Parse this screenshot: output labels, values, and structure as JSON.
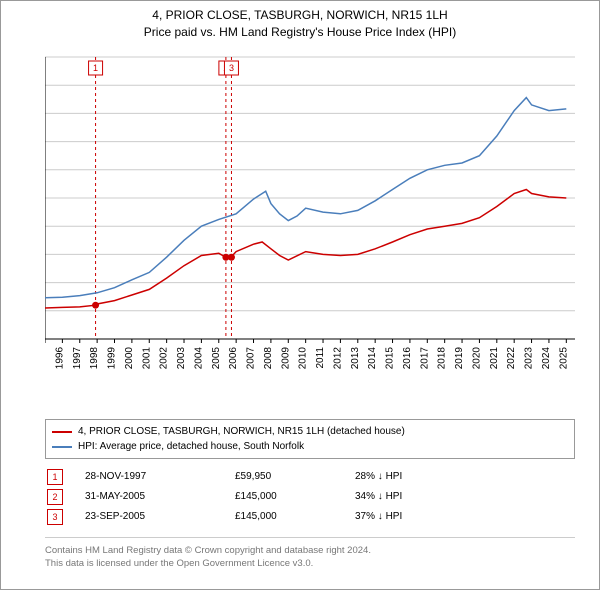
{
  "title_line1": "4, PRIOR CLOSE, TASBURGH, NORWICH, NR15 1LH",
  "title_line2": "Price paid vs. HM Land Registry's House Price Index (HPI)",
  "chart": {
    "type": "line",
    "background_color": "#ffffff",
    "grid_color": "#cccccc",
    "axis_color": "#000000",
    "label_fontsize": 10,
    "xlim": [
      1995,
      2025.5
    ],
    "ylim": [
      0,
      500000
    ],
    "ytick_step": 50000,
    "yticks": [
      "£0",
      "£50K",
      "£100K",
      "£150K",
      "£200K",
      "£250K",
      "£300K",
      "£350K",
      "£400K",
      "£450K",
      "£500K"
    ],
    "xticks": [
      "1995",
      "1996",
      "1997",
      "1998",
      "1999",
      "2000",
      "2001",
      "2002",
      "2003",
      "2004",
      "2005",
      "2006",
      "2007",
      "2008",
      "2009",
      "2010",
      "2011",
      "2012",
      "2013",
      "2014",
      "2015",
      "2016",
      "2017",
      "2018",
      "2019",
      "2020",
      "2021",
      "2022",
      "2023",
      "2024",
      "2025"
    ],
    "series": [
      {
        "name": "4, PRIOR CLOSE, TASBURGH, NORWICH, NR15 1LH (detached house)",
        "color": "#cc0000",
        "line_width": 1.5,
        "data": [
          [
            1995,
            55000
          ],
          [
            1996,
            56000
          ],
          [
            1997,
            57000
          ],
          [
            1997.9,
            59950
          ],
          [
            1998,
            62000
          ],
          [
            1999,
            68000
          ],
          [
            2000,
            78000
          ],
          [
            2001,
            88000
          ],
          [
            2002,
            108000
          ],
          [
            2003,
            130000
          ],
          [
            2004,
            148000
          ],
          [
            2005,
            152000
          ],
          [
            2005.4,
            145000
          ],
          [
            2005.7,
            145000
          ],
          [
            2006,
            155000
          ],
          [
            2007,
            168000
          ],
          [
            2007.5,
            172000
          ],
          [
            2008,
            160000
          ],
          [
            2008.5,
            148000
          ],
          [
            2009,
            140000
          ],
          [
            2010,
            155000
          ],
          [
            2011,
            150000
          ],
          [
            2012,
            148000
          ],
          [
            2013,
            150000
          ],
          [
            2014,
            160000
          ],
          [
            2015,
            172000
          ],
          [
            2016,
            185000
          ],
          [
            2017,
            195000
          ],
          [
            2018,
            200000
          ],
          [
            2019,
            205000
          ],
          [
            2020,
            215000
          ],
          [
            2021,
            235000
          ],
          [
            2022,
            258000
          ],
          [
            2022.7,
            265000
          ],
          [
            2023,
            258000
          ],
          [
            2024,
            252000
          ],
          [
            2025,
            250000
          ]
        ]
      },
      {
        "name": "HPI: Average price, detached house, South Norfolk",
        "color": "#4a7ebb",
        "line_width": 1.5,
        "data": [
          [
            1995,
            73000
          ],
          [
            1996,
            74000
          ],
          [
            1997,
            77000
          ],
          [
            1998,
            82000
          ],
          [
            1999,
            91000
          ],
          [
            2000,
            105000
          ],
          [
            2001,
            118000
          ],
          [
            2002,
            145000
          ],
          [
            2003,
            175000
          ],
          [
            2004,
            200000
          ],
          [
            2005,
            212000
          ],
          [
            2006,
            222000
          ],
          [
            2007,
            248000
          ],
          [
            2007.7,
            262000
          ],
          [
            2008,
            240000
          ],
          [
            2008.5,
            222000
          ],
          [
            2009,
            210000
          ],
          [
            2009.5,
            218000
          ],
          [
            2010,
            232000
          ],
          [
            2011,
            225000
          ],
          [
            2012,
            222000
          ],
          [
            2013,
            228000
          ],
          [
            2014,
            245000
          ],
          [
            2015,
            265000
          ],
          [
            2016,
            285000
          ],
          [
            2017,
            300000
          ],
          [
            2018,
            308000
          ],
          [
            2019,
            312000
          ],
          [
            2020,
            325000
          ],
          [
            2021,
            360000
          ],
          [
            2022,
            405000
          ],
          [
            2022.7,
            428000
          ],
          [
            2023,
            415000
          ],
          [
            2024,
            405000
          ],
          [
            2025,
            408000
          ]
        ]
      }
    ],
    "sale_markers": [
      {
        "n": "1",
        "x": 1997.91,
        "y": 59950,
        "color": "#cc0000"
      },
      {
        "n": "2",
        "x": 2005.41,
        "y": 145000,
        "color": "#cc0000"
      },
      {
        "n": "3",
        "x": 2005.73,
        "y": 145000,
        "color": "#cc0000"
      }
    ],
    "sale_vlines_color": "#cc0000",
    "sale_vlines_dash": "3,3"
  },
  "legend": {
    "border_color": "#999999",
    "items": [
      {
        "color": "#cc0000",
        "label": "4, PRIOR CLOSE, TASBURGH, NORWICH, NR15 1LH (detached house)"
      },
      {
        "color": "#4a7ebb",
        "label": "HPI: Average price, detached house, South Norfolk"
      }
    ]
  },
  "sales": [
    {
      "n": "1",
      "border_color": "#cc0000",
      "date": "28-NOV-1997",
      "price": "£59,950",
      "diff": "28% ↓ HPI"
    },
    {
      "n": "2",
      "border_color": "#cc0000",
      "date": "31-MAY-2005",
      "price": "£145,000",
      "diff": "34% ↓ HPI"
    },
    {
      "n": "3",
      "border_color": "#cc0000",
      "date": "23-SEP-2005",
      "price": "£145,000",
      "diff": "37% ↓ HPI"
    }
  ],
  "attribution": {
    "line1": "Contains HM Land Registry data © Crown copyright and database right 2024.",
    "line2": "This data is licensed under the Open Government Licence v3.0.",
    "color": "#777777"
  }
}
